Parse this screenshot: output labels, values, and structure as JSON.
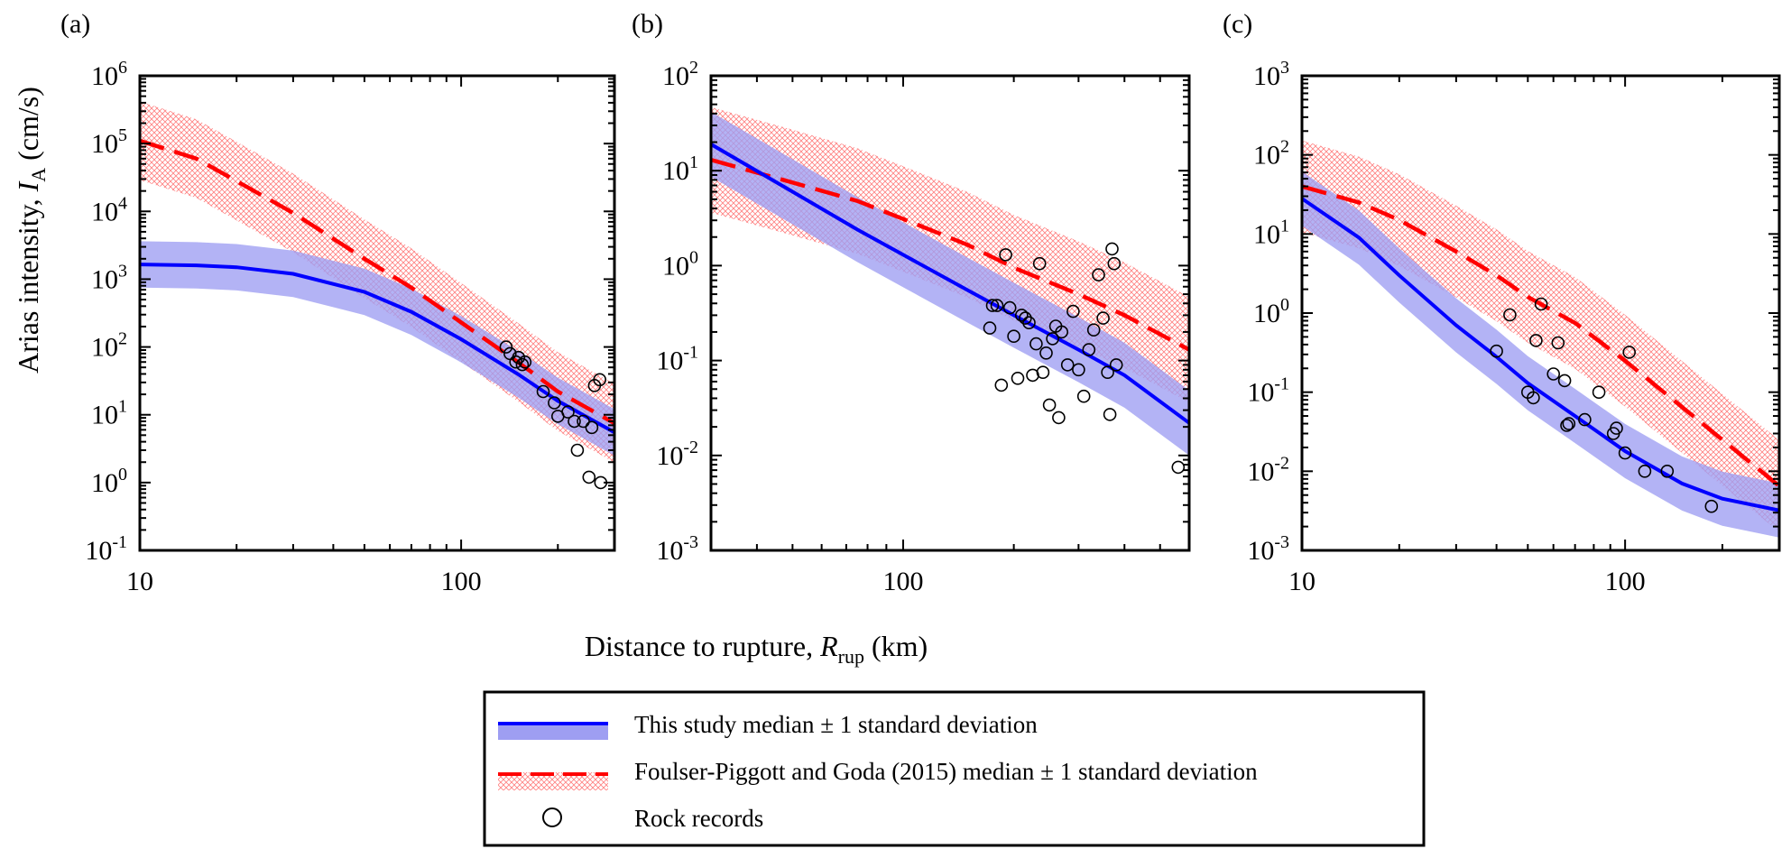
{
  "chart_data": [
    {
      "type": "line",
      "panel_label": "(a)",
      "x_scale": "log",
      "y_scale": "log",
      "xlim": [
        10,
        300
      ],
      "ylim": [
        0.1,
        1000000
      ],
      "x_ticks": [
        {
          "v": 10,
          "label": "10"
        },
        {
          "v": 100,
          "label": "100"
        }
      ],
      "y_ticks": [
        {
          "v": 0.1,
          "base": "10",
          "exp": "-1"
        },
        {
          "v": 1,
          "base": "10",
          "exp": "0"
        },
        {
          "v": 10,
          "base": "10",
          "exp": "1"
        },
        {
          "v": 100,
          "base": "10",
          "exp": "2"
        },
        {
          "v": 1000,
          "base": "10",
          "exp": "3"
        },
        {
          "v": 10000,
          "base": "10",
          "exp": "4"
        },
        {
          "v": 100000,
          "base": "10",
          "exp": "5"
        },
        {
          "v": 1000000,
          "base": "10",
          "exp": "6"
        }
      ],
      "series": [
        {
          "key": "this_study",
          "x": [
            10,
            15,
            20,
            30,
            50,
            70,
            100,
            150,
            200,
            300
          ],
          "y": [
            1650,
            1600,
            1500,
            1200,
            650,
            330,
            130,
            40,
            16,
            5.5
          ],
          "sigma_factor": 2.2
        },
        {
          "key": "fpg2015",
          "x": [
            10,
            15,
            20,
            30,
            50,
            70,
            100,
            150,
            200,
            300
          ],
          "y": [
            110000,
            60000,
            28000,
            9500,
            2000,
            750,
            230,
            60,
            22,
            7.5
          ],
          "sigma_factor": 3.8
        },
        {
          "key": "rock",
          "x": [
            138,
            142,
            148,
            151,
            155,
            158,
            180,
            195,
            200,
            215,
            225,
            230,
            240,
            250,
            255,
            260,
            270,
            272
          ],
          "y": [
            100,
            80,
            60,
            70,
            55,
            60,
            22,
            15,
            9.5,
            11,
            8,
            3,
            8,
            1.2,
            6.5,
            27,
            33,
            1.0
          ]
        }
      ]
    },
    {
      "type": "line",
      "panel_label": "(b)",
      "x_scale": "log",
      "y_scale": "log",
      "xlim": [
        30,
        600
      ],
      "ylim": [
        0.001,
        100
      ],
      "x_ticks": [
        {
          "v": 100,
          "label": "100"
        }
      ],
      "y_ticks": [
        {
          "v": 0.001,
          "base": "10",
          "exp": "-3"
        },
        {
          "v": 0.01,
          "base": "10",
          "exp": "-2"
        },
        {
          "v": 0.1,
          "base": "10",
          "exp": "-1"
        },
        {
          "v": 1,
          "base": "10",
          "exp": "0"
        },
        {
          "v": 10,
          "base": "10",
          "exp": "1"
        },
        {
          "v": 100,
          "base": "10",
          "exp": "2"
        }
      ],
      "series": [
        {
          "key": "this_study",
          "x": [
            30,
            50,
            75,
            100,
            150,
            200,
            300,
            400,
            600
          ],
          "y": [
            19,
            6,
            2.4,
            1.3,
            0.55,
            0.3,
            0.13,
            0.07,
            0.022
          ],
          "sigma_factor": 2.2
        },
        {
          "key": "fpg2015",
          "x": [
            30,
            50,
            75,
            100,
            150,
            200,
            300,
            400,
            600
          ],
          "y": [
            13,
            7.5,
            4.8,
            3.1,
            1.65,
            0.95,
            0.5,
            0.3,
            0.13
          ],
          "sigma_factor": 3.6
        },
        {
          "key": "rock",
          "x": [
            172,
            175,
            180,
            185,
            190,
            195,
            200,
            205,
            210,
            215,
            220,
            225,
            230,
            235,
            240,
            245,
            250,
            255,
            260,
            265,
            270,
            280,
            290,
            300,
            310,
            320,
            330,
            340,
            350,
            360,
            365,
            370,
            375,
            380,
            560
          ],
          "y": [
            0.22,
            0.38,
            0.38,
            0.055,
            1.3,
            0.36,
            0.18,
            0.065,
            0.3,
            0.28,
            0.25,
            0.07,
            0.15,
            1.05,
            0.075,
            0.12,
            0.034,
            0.17,
            0.23,
            0.025,
            0.2,
            0.09,
            0.33,
            0.08,
            0.042,
            0.13,
            0.21,
            0.8,
            0.28,
            0.075,
            0.027,
            1.5,
            1.05,
            0.09,
            0.0075
          ]
        }
      ]
    },
    {
      "type": "line",
      "panel_label": "(c)",
      "x_scale": "log",
      "y_scale": "log",
      "xlim": [
        10,
        300
      ],
      "ylim": [
        0.001,
        1000
      ],
      "x_ticks": [
        {
          "v": 10,
          "label": "10"
        },
        {
          "v": 100,
          "label": "100"
        }
      ],
      "y_ticks": [
        {
          "v": 0.001,
          "base": "10",
          "exp": "-3"
        },
        {
          "v": 0.01,
          "base": "10",
          "exp": "-2"
        },
        {
          "v": 0.1,
          "base": "10",
          "exp": "-1"
        },
        {
          "v": 1,
          "base": "10",
          "exp": "0"
        },
        {
          "v": 10,
          "base": "10",
          "exp": "1"
        },
        {
          "v": 100,
          "base": "10",
          "exp": "2"
        },
        {
          "v": 1000,
          "base": "10",
          "exp": "3"
        }
      ],
      "series": [
        {
          "key": "this_study",
          "x": [
            10,
            15,
            20,
            30,
            40,
            50,
            70,
            100,
            150,
            200,
            300
          ],
          "y": [
            28,
            9,
            3,
            0.7,
            0.28,
            0.13,
            0.05,
            0.018,
            0.007,
            0.0045,
            0.0032
          ],
          "sigma_factor": 2.2
        },
        {
          "key": "fpg2015",
          "x": [
            10,
            15,
            20,
            30,
            40,
            50,
            70,
            100,
            150,
            200,
            300
          ],
          "y": [
            40,
            25,
            15,
            6,
            3,
            1.6,
            0.75,
            0.25,
            0.065,
            0.025,
            0.0065
          ],
          "sigma_factor": 3.8
        },
        {
          "key": "rock",
          "x": [
            40,
            44,
            50,
            52,
            53,
            55,
            60,
            62,
            65,
            66,
            67,
            75,
            83,
            92,
            94,
            100,
            103,
            115,
            135,
            185
          ],
          "y": [
            0.33,
            0.95,
            0.1,
            0.085,
            0.45,
            1.3,
            0.17,
            0.42,
            0.14,
            0.038,
            0.04,
            0.045,
            0.1,
            0.03,
            0.035,
            0.017,
            0.32,
            0.01,
            0.01,
            0.0036
          ]
        }
      ]
    }
  ],
  "axes": {
    "ylabel_main": "Arias intensity, ",
    "ylabel_var": "I",
    "ylabel_sub": "A",
    "ylabel_unit": " (cm/s)",
    "xlabel_main": "Distance to rupture, ",
    "xlabel_var": "R",
    "xlabel_sub": "rup",
    "xlabel_unit": " (km)"
  },
  "legend": {
    "this_study": "This study median ± 1 standard deviation",
    "fpg2015": "Foulser-Piggott and Goda (2015) median ± 1 standard deviation",
    "rock": "Rock records"
  },
  "colors": {
    "this_study_line": "#0000ff",
    "this_study_band": "#9e9ef2",
    "fpg_line": "#ff0000",
    "fpg_hatch": "#ff7f7f",
    "markers": "#000000"
  }
}
